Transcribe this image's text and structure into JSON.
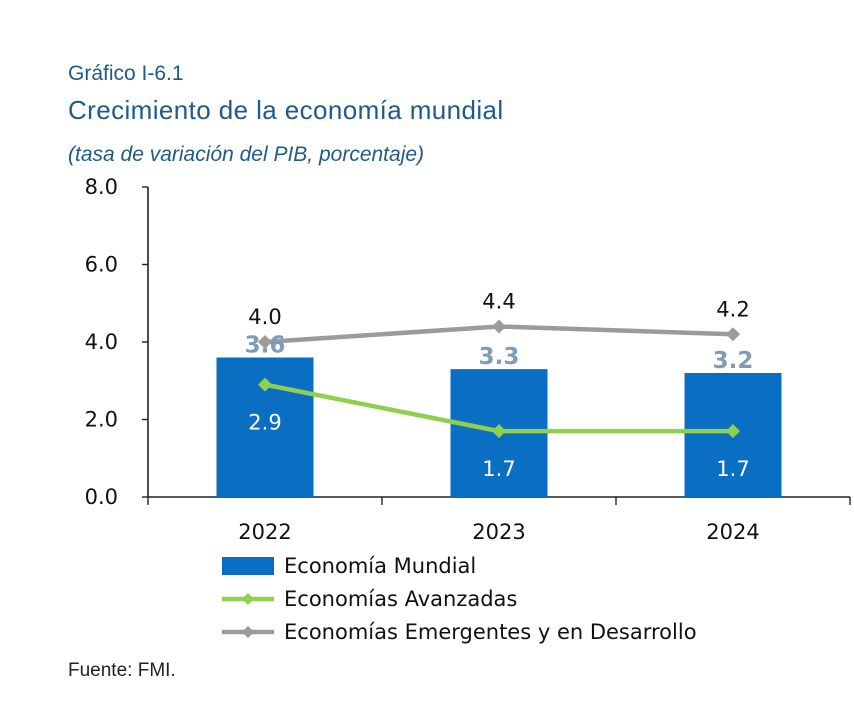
{
  "figure_label": "Gráfico I-6.1",
  "title": "Crecimiento de la economía mundial",
  "subtitle": "(tasa de variación del PIB, porcentaje)",
  "source": "Fuente: FMI.",
  "chart_data": {
    "type": "bar",
    "categories": [
      "2022",
      "2023",
      "2024"
    ],
    "ylim": [
      0,
      8
    ],
    "yticks": [
      0,
      2,
      4,
      6,
      8
    ],
    "ytick_labels": [
      "0.0",
      "2.0",
      "4.0",
      "6.0",
      "8.0"
    ],
    "grid": false,
    "legend_position": "bottom",
    "series": [
      {
        "name": "Economía Mundial",
        "kind": "bar",
        "color": "#0a6ec2",
        "label_color": "#7d9cb8",
        "values": [
          3.6,
          3.3,
          3.2
        ],
        "labels": [
          "3.6",
          "3.3",
          "3.2"
        ]
      },
      {
        "name": "Economías Avanzadas",
        "kind": "line",
        "color": "#8fd14f",
        "label_color": "#ffffff",
        "values": [
          2.9,
          1.7,
          1.7
        ],
        "labels": [
          "2.9",
          "1.7",
          "1.7"
        ]
      },
      {
        "name": "Economías Emergentes y en Desarrollo",
        "kind": "line",
        "color": "#9b9b9b",
        "label_color": "#111111",
        "values": [
          4.0,
          4.4,
          4.2
        ],
        "labels": [
          "4.0",
          "4.4",
          "4.2"
        ]
      }
    ]
  }
}
